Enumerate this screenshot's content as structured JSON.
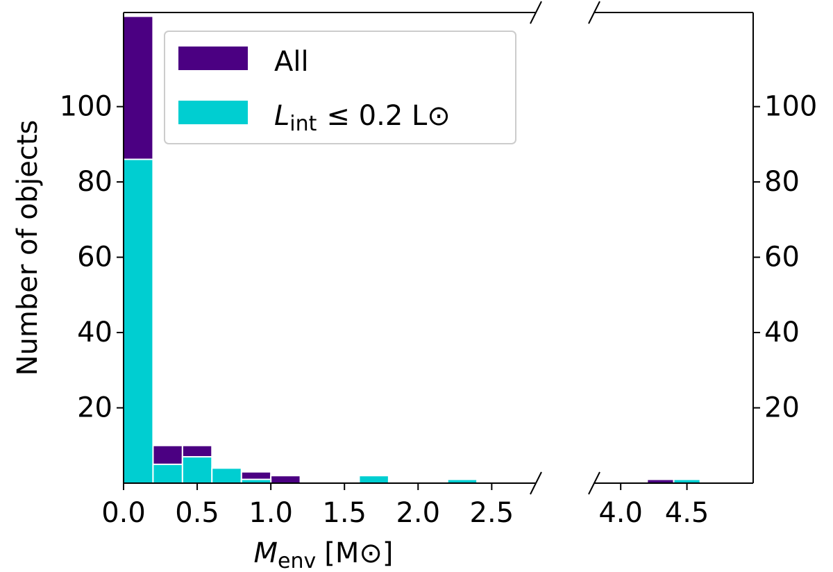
{
  "chart_data": {
    "type": "bar",
    "xlabel": {
      "main": "M",
      "sub": "env",
      "unit": "[M⊙]"
    },
    "ylabel": "Number of objects",
    "ylim": [
      0,
      125
    ],
    "x_break": {
      "left_range": [
        0.0,
        2.8
      ],
      "right_range": [
        3.8,
        5.0
      ]
    },
    "x_ticks_left": [
      "0.0",
      "0.5",
      "1.0",
      "1.5",
      "2.0",
      "2.5"
    ],
    "x_ticks_right": [
      "4.0",
      "4.5"
    ],
    "y_ticks": [
      "20",
      "40",
      "60",
      "80",
      "100"
    ],
    "legend": {
      "position": "top-left",
      "items": [
        {
          "name": "All",
          "color": "#4b0082"
        },
        {
          "name_main": "L",
          "name_sub": "int",
          "name_rest": "≤  0.2 L⊙",
          "color": "#00ced1"
        }
      ]
    },
    "series": [
      {
        "name": "All",
        "color": "#4b0082",
        "bins": [
          {
            "x0": 0.0,
            "x1": 0.2,
            "count": 124
          },
          {
            "x0": 0.2,
            "x1": 0.4,
            "count": 10
          },
          {
            "x0": 0.4,
            "x1": 0.6,
            "count": 10
          },
          {
            "x0": 0.6,
            "x1": 0.8,
            "count": 4
          },
          {
            "x0": 0.8,
            "x1": 1.0,
            "count": 3
          },
          {
            "x0": 1.0,
            "x1": 1.2,
            "count": 2
          },
          {
            "x0": 1.6,
            "x1": 1.8,
            "count": 2
          },
          {
            "x0": 2.2,
            "x1": 2.4,
            "count": 1
          },
          {
            "x0": 4.2,
            "x1": 4.4,
            "count": 1
          },
          {
            "x0": 4.4,
            "x1": 4.6,
            "count": 1
          }
        ]
      },
      {
        "name": "Lint ≤ 0.2 L⊙",
        "color": "#00ced1",
        "bins": [
          {
            "x0": 0.0,
            "x1": 0.2,
            "count": 86
          },
          {
            "x0": 0.2,
            "x1": 0.4,
            "count": 5
          },
          {
            "x0": 0.4,
            "x1": 0.6,
            "count": 7
          },
          {
            "x0": 0.6,
            "x1": 0.8,
            "count": 4
          },
          {
            "x0": 0.8,
            "x1": 1.0,
            "count": 1
          },
          {
            "x0": 1.6,
            "x1": 1.8,
            "count": 2
          },
          {
            "x0": 2.2,
            "x1": 2.4,
            "count": 1
          },
          {
            "x0": 4.4,
            "x1": 4.6,
            "count": 1
          }
        ]
      }
    ]
  }
}
